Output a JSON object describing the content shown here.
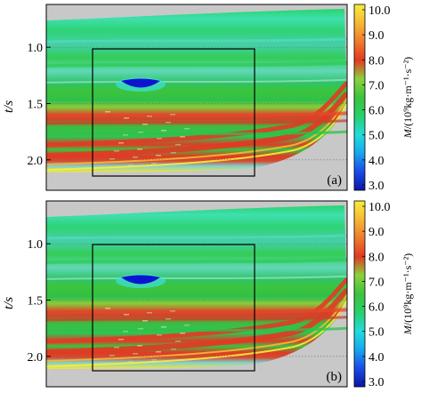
{
  "chart_data": [
    {
      "type": "heatmap",
      "panel_label": "(a)",
      "ylabel": "t/s",
      "yticks": [
        1.0,
        1.5,
        2.0
      ],
      "ylim": [
        0.62,
        2.27
      ],
      "colorbar_label": "M/(10⁹kg·m⁻¹·s⁻²)",
      "colorbar_ticks": [
        10.0,
        9.0,
        8.0,
        7.0,
        6.0,
        5.0,
        4.0,
        3.0
      ],
      "colorbar_range": [
        3.0,
        10.0
      ],
      "colormap": [
        "#0b15a8",
        "#1a4ce6",
        "#18a7ee",
        "#22dcdc",
        "#26d06a",
        "#3cc43c",
        "#8cd23c",
        "#e13a24",
        "#f07a2c",
        "#f5b835",
        "#f7ee3c"
      ],
      "background_color": "#c8c8c8",
      "grid": "horizontal-dotted"
    },
    {
      "type": "heatmap",
      "panel_label": "(b)",
      "ylabel": "t/s",
      "yticks": [
        1.0,
        1.5,
        2.0
      ],
      "ylim": [
        0.62,
        2.27
      ],
      "colorbar_label": "M/(10⁹kg·m⁻¹·s⁻²)",
      "colorbar_ticks": [
        10.0,
        9.0,
        8.0,
        7.0,
        6.0,
        5.0,
        4.0,
        3.0
      ],
      "colorbar_range": [
        3.0,
        10.0
      ],
      "colormap": [
        "#0b15a8",
        "#1a4ce6",
        "#18a7ee",
        "#22dcdc",
        "#26d06a",
        "#3cc43c",
        "#8cd23c",
        "#e13a24",
        "#f07a2c",
        "#f5b835",
        "#f7ee3c"
      ],
      "background_color": "#c8c8c8",
      "grid": "horizontal-dotted"
    }
  ]
}
